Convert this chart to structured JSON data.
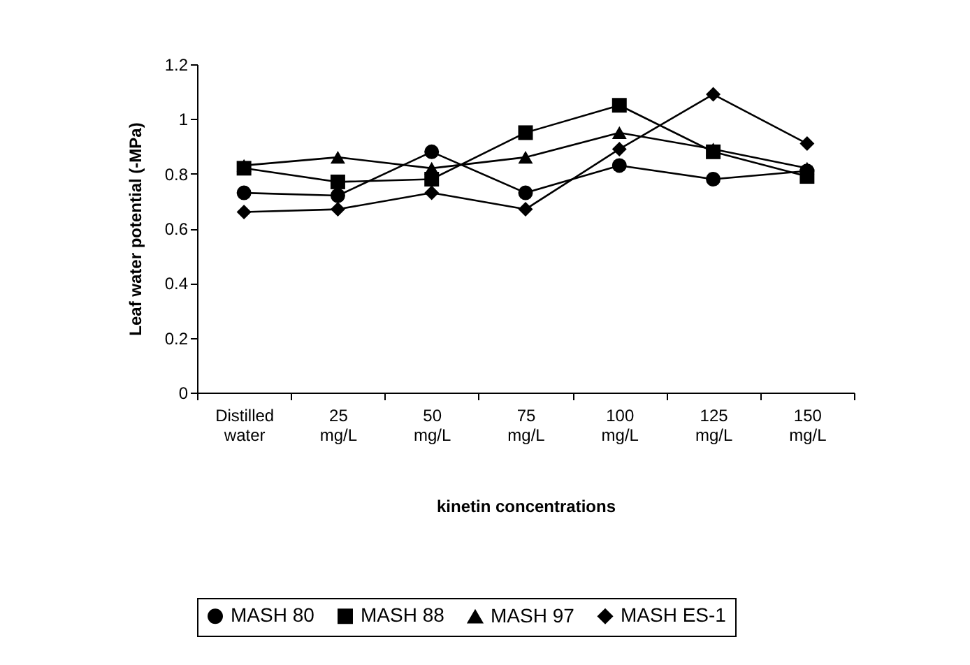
{
  "chart_data": {
    "type": "line",
    "xlabel": "kinetin concentrations",
    "ylabel": "Leaf water potential (-MPa)",
    "categories": [
      "Distilled water",
      "25 mg/L",
      "50 mg/L",
      "75 mg/L",
      "100 mg/L",
      "125 mg/L",
      "150 mg/L"
    ],
    "series": [
      {
        "name": "MASH 80",
        "color": "#000000",
        "marker": "circle",
        "values": [
          0.73,
          0.72,
          0.88,
          0.73,
          0.83,
          0.78,
          0.81
        ]
      },
      {
        "name": "MASH 88",
        "color": "#000000",
        "marker": "square",
        "values": [
          0.82,
          0.77,
          0.78,
          0.95,
          1.05,
          0.88,
          0.79
        ]
      },
      {
        "name": "MASH 97",
        "color": "#000000",
        "marker": "triangle",
        "values": [
          0.83,
          0.86,
          0.82,
          0.86,
          0.95,
          0.89,
          0.82
        ]
      },
      {
        "name": "MASH ES-1",
        "color": "#000000",
        "marker": "diamond",
        "values": [
          0.66,
          0.67,
          0.73,
          0.67,
          0.89,
          1.09,
          0.91
        ]
      }
    ],
    "ylim": [
      0,
      1.2
    ],
    "yticks": [
      0,
      0.2,
      0.4,
      0.6,
      0.8,
      1,
      1.2
    ],
    "grid": false,
    "legend": "bottom",
    "line_style": "solid"
  }
}
